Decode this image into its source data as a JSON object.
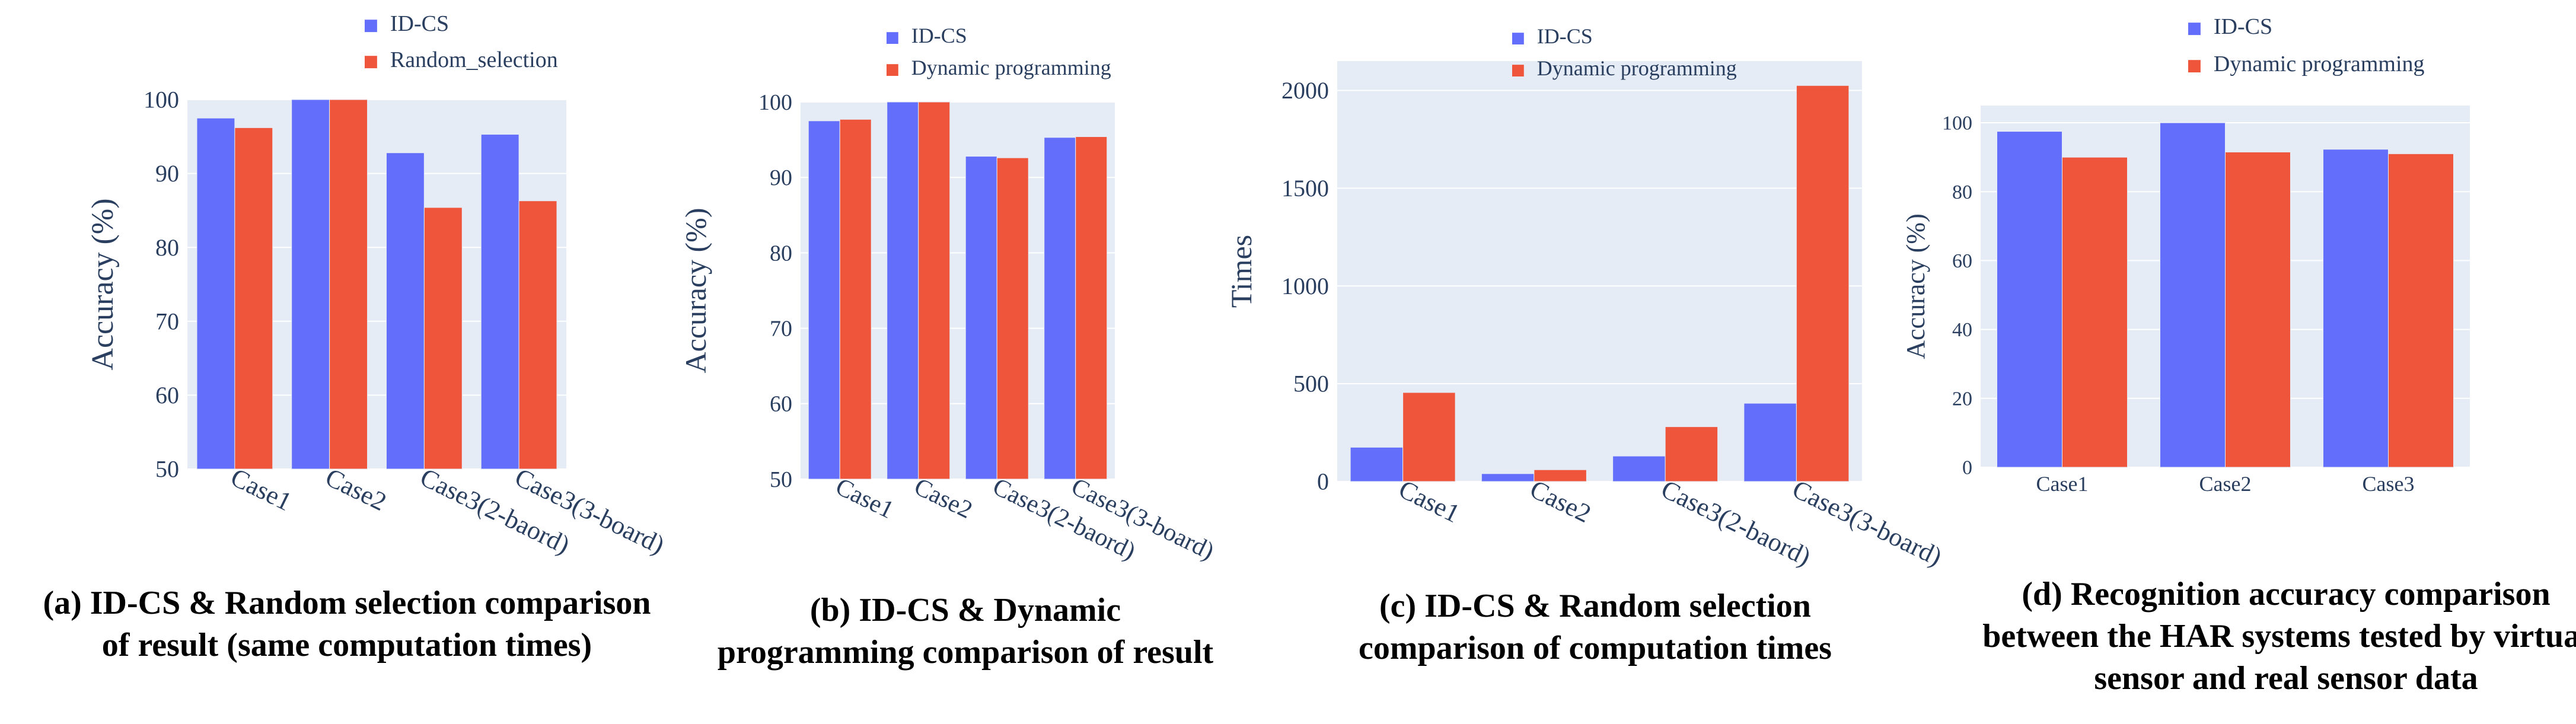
{
  "colors": {
    "series_a": "#636efa",
    "series_b": "#ef553b",
    "plot_bg": "#e5ecf6",
    "grid": "#ffffff",
    "text": "#2a3f5f"
  },
  "chart_data": [
    {
      "type": "bar",
      "categories": [
        "Case1",
        "Case2",
        "Case3(2-baord)",
        "Case3(3-board)"
      ],
      "series": [
        {
          "name": "ID-CS",
          "values": [
            97.5,
            100,
            92.8,
            95.3
          ]
        },
        {
          "name": "Random_selection",
          "values": [
            96.2,
            100,
            85.4,
            86.3
          ]
        }
      ],
      "ylabel": "Accuracy (%)",
      "ylim": [
        50,
        100
      ],
      "yticks": [
        50,
        60,
        70,
        80,
        90,
        100
      ],
      "caption": [
        "(a) ID-CS & Random selection comparison",
        "of result (same computation times)"
      ]
    },
    {
      "type": "bar",
      "categories": [
        "Case1",
        "Case2",
        "Case3(2-baord)",
        "Case3(3-board)"
      ],
      "series": [
        {
          "name": "ID-CS",
          "values": [
            97.5,
            100,
            92.8,
            95.3
          ]
        },
        {
          "name": "Dynamic programming",
          "values": [
            97.7,
            100,
            92.6,
            95.4
          ]
        }
      ],
      "ylabel": "Accuracy (%)",
      "ylim": [
        50,
        100
      ],
      "yticks": [
        50,
        60,
        70,
        80,
        90,
        100
      ],
      "caption": [
        "(b) ID-CS & Dynamic",
        "programming comparison of result"
      ]
    },
    {
      "type": "bar",
      "categories": [
        "Case1",
        "Case2",
        "Case3(2-baord)",
        "Case3(3-board)"
      ],
      "series": [
        {
          "name": "ID-CS",
          "values": [
            175,
            40,
            130,
            400
          ]
        },
        {
          "name": "Dynamic programming",
          "values": [
            455,
            60,
            280,
            2025
          ]
        }
      ],
      "ylabel": "Times",
      "ylim": [
        0,
        2150
      ],
      "yticks": [
        0,
        500,
        1000,
        1500,
        2000
      ],
      "caption": [
        "(c) ID-CS & Random selection",
        "comparison of computation times"
      ]
    },
    {
      "type": "bar",
      "categories": [
        "Case1",
        "Case2",
        "Case3"
      ],
      "series": [
        {
          "name": "ID-CS",
          "values": [
            97.5,
            100,
            92.3
          ]
        },
        {
          "name": "Dynamic programming",
          "values": [
            90,
            91.5,
            91
          ]
        }
      ],
      "ylabel": "Accuracy (%)",
      "ylim": [
        0,
        105
      ],
      "yticks": [
        0,
        20,
        40,
        60,
        80,
        100
      ],
      "caption": [
        "(d) Recognition accuracy comparison",
        "between the HAR systems tested by virtual",
        "sensor and real sensor data"
      ]
    }
  ]
}
